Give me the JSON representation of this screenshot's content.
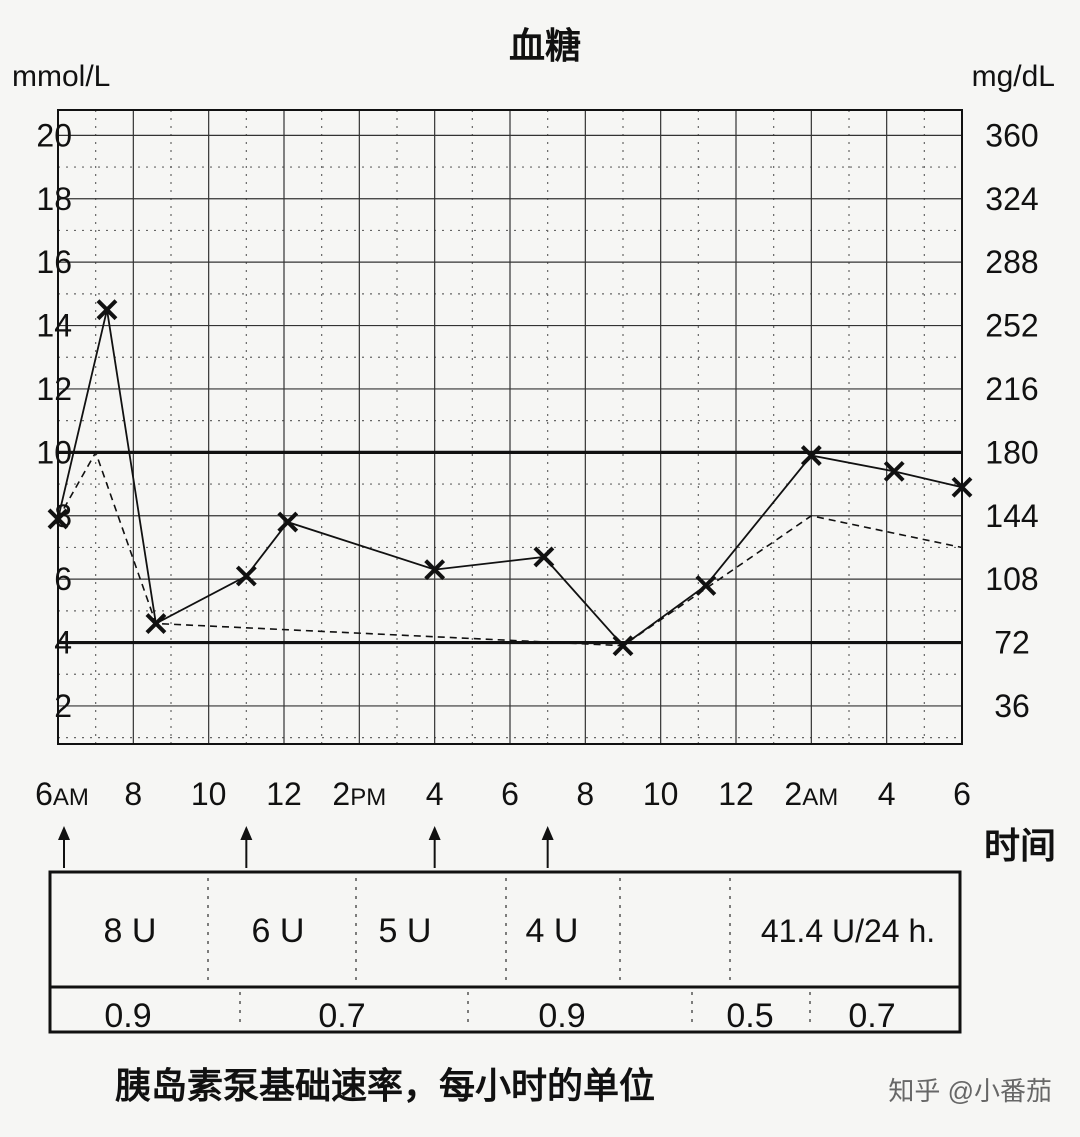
{
  "chart_data": {
    "type": "line",
    "title": "血糖",
    "ylabel_left": "mmol/L",
    "ylabel_right": "mg/dL",
    "xlabel": "时间",
    "ylim": [
      0,
      20
    ],
    "yticks_left": [
      "2",
      "4",
      "6",
      "8",
      "10",
      "12",
      "14",
      "16",
      "18",
      "20"
    ],
    "yticks_right": [
      "36",
      "72",
      "108",
      "144",
      "180",
      "216",
      "252",
      "288",
      "324",
      "360"
    ],
    "target_range": [
      4,
      10
    ],
    "x_hours_range": [
      6,
      30
    ],
    "xticks": [
      {
        "hour": 6,
        "num": "6",
        "suffix": "AM"
      },
      {
        "hour": 8,
        "num": "8",
        "suffix": ""
      },
      {
        "hour": 10,
        "num": "10",
        "suffix": ""
      },
      {
        "hour": 12,
        "num": "12",
        "suffix": ""
      },
      {
        "hour": 14,
        "num": "2",
        "suffix": "PM"
      },
      {
        "hour": 16,
        "num": "4",
        "suffix": ""
      },
      {
        "hour": 18,
        "num": "6",
        "suffix": ""
      },
      {
        "hour": 20,
        "num": "8",
        "suffix": ""
      },
      {
        "hour": 22,
        "num": "10",
        "suffix": ""
      },
      {
        "hour": 24,
        "num": "12",
        "suffix": ""
      },
      {
        "hour": 26,
        "num": "2",
        "suffix": "AM"
      },
      {
        "hour": 28,
        "num": "4",
        "suffix": ""
      },
      {
        "hour": 30,
        "num": "6",
        "suffix": ""
      }
    ],
    "series": [
      {
        "style": "solid",
        "marker": "x",
        "points": [
          {
            "hour": 6.0,
            "value": 7.9
          },
          {
            "hour": 7.3,
            "value": 14.5
          },
          {
            "hour": 8.6,
            "value": 4.6
          },
          {
            "hour": 11.0,
            "value": 6.1
          },
          {
            "hour": 12.1,
            "value": 7.8
          },
          {
            "hour": 16.0,
            "value": 6.3
          },
          {
            "hour": 18.9,
            "value": 6.7
          },
          {
            "hour": 21.0,
            "value": 3.9
          },
          {
            "hour": 23.2,
            "value": 5.8
          },
          {
            "hour": 26.0,
            "value": 9.9
          },
          {
            "hour": 28.2,
            "value": 9.4
          },
          {
            "hour": 30.0,
            "value": 8.9
          }
        ]
      },
      {
        "style": "dashed",
        "marker": "none",
        "points": [
          {
            "hour": 6.0,
            "value": 7.9
          },
          {
            "hour": 7.0,
            "value": 10.0
          },
          {
            "hour": 8.6,
            "value": 4.6
          },
          {
            "hour": 21.0,
            "value": 3.9
          },
          {
            "hour": 26.0,
            "value": 8.0
          },
          {
            "hour": 30.0,
            "value": 7.0
          }
        ]
      }
    ],
    "bolus_arrows_hours": [
      6,
      11,
      16,
      19
    ],
    "bolus_doses": [
      "8 U",
      "6 U",
      "5 U",
      "4 U"
    ],
    "daily_total": "41.4 U/24 h.",
    "basal_rates": [
      "0.9",
      "0.7",
      "0.9",
      "0.5",
      "0.7"
    ]
  },
  "caption": "胰岛素泵基础速率，每小时的单位",
  "watermark": "知乎 @小番茄"
}
